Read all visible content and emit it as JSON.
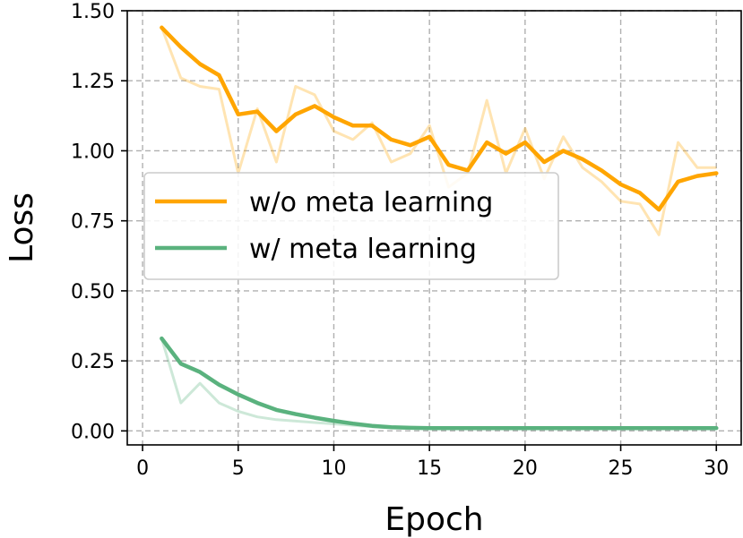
{
  "chart_data": {
    "type": "line",
    "xlabel": "Epoch",
    "ylabel": "Loss",
    "xlim": [
      -0.8,
      31.3
    ],
    "ylim": [
      -0.05,
      1.5
    ],
    "xticks": [
      0,
      5,
      10,
      15,
      20,
      25,
      30
    ],
    "yticks": [
      0.0,
      0.25,
      0.5,
      0.75,
      1.0,
      1.25,
      1.5
    ],
    "xtick_labels": [
      "0",
      "5",
      "10",
      "15",
      "20",
      "25",
      "30"
    ],
    "ytick_labels": [
      "0.00",
      "0.25",
      "0.50",
      "0.75",
      "1.00",
      "1.25",
      "1.50"
    ],
    "grid": true,
    "legend_position": "center-left",
    "x": [
      1,
      2,
      3,
      4,
      5,
      6,
      7,
      8,
      9,
      10,
      11,
      12,
      13,
      14,
      15,
      16,
      17,
      18,
      19,
      20,
      21,
      22,
      23,
      24,
      25,
      26,
      27,
      28,
      29,
      30
    ],
    "series": [
      {
        "name": "w/o meta learning",
        "color": "#FFA500",
        "raw": [
          1.44,
          1.26,
          1.23,
          1.22,
          0.92,
          1.15,
          0.96,
          1.23,
          1.2,
          1.07,
          1.04,
          1.1,
          0.96,
          0.99,
          1.09,
          0.87,
          0.92,
          1.18,
          0.92,
          1.08,
          0.9,
          1.05,
          0.94,
          0.89,
          0.82,
          0.81,
          0.7,
          1.03,
          0.94,
          0.94
        ],
        "smoothed": [
          1.44,
          1.37,
          1.31,
          1.27,
          1.13,
          1.14,
          1.07,
          1.13,
          1.16,
          1.12,
          1.09,
          1.09,
          1.04,
          1.02,
          1.05,
          0.95,
          0.93,
          1.03,
          0.99,
          1.03,
          0.96,
          1.0,
          0.97,
          0.93,
          0.88,
          0.85,
          0.79,
          0.89,
          0.91,
          0.92
        ]
      },
      {
        "name": "w/ meta learning",
        "color": "#5AB27E",
        "raw": [
          0.33,
          0.1,
          0.17,
          0.1,
          0.07,
          0.05,
          0.04,
          0.035,
          0.03,
          0.025,
          0.02,
          0.015,
          0.012,
          0.01,
          0.01,
          0.01,
          0.01,
          0.01,
          0.01,
          0.01,
          0.01,
          0.01,
          0.01,
          0.01,
          0.01,
          0.01,
          0.01,
          0.01,
          0.01,
          0.01
        ],
        "smoothed": [
          0.33,
          0.24,
          0.21,
          0.165,
          0.13,
          0.1,
          0.075,
          0.06,
          0.047,
          0.036,
          0.026,
          0.018,
          0.013,
          0.011,
          0.01,
          0.01,
          0.01,
          0.01,
          0.01,
          0.01,
          0.01,
          0.01,
          0.01,
          0.01,
          0.01,
          0.01,
          0.01,
          0.01,
          0.01,
          0.01
        ]
      }
    ]
  }
}
